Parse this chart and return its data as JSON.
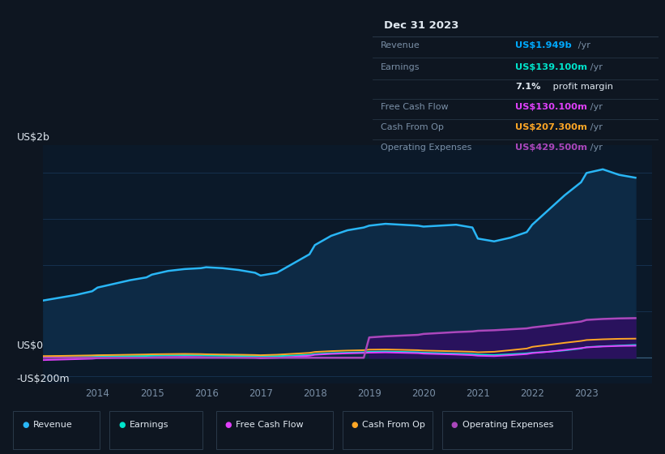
{
  "background_color": "#0e1621",
  "plot_bg_color": "#0b1929",
  "ylabel_top": "US$2b",
  "ylabel_zero": "US$0",
  "ylabel_neg": "-US$200m",
  "title_box": {
    "date": "Dec 31 2023",
    "rows": [
      {
        "label": "Revenue",
        "value": "US$1.949b",
        "value_color": "#00aaff",
        "suffix": " /yr"
      },
      {
        "label": "Earnings",
        "value": "US$139.100m",
        "value_color": "#00e5cc",
        "suffix": " /yr"
      },
      {
        "label": "",
        "value": "7.1%",
        "value_color": "#ffffff",
        "suffix": " profit margin"
      },
      {
        "label": "Free Cash Flow",
        "value": "US$130.100m",
        "value_color": "#e040fb",
        "suffix": " /yr"
      },
      {
        "label": "Cash From Op",
        "value": "US$207.300m",
        "value_color": "#ffa726",
        "suffix": " /yr"
      },
      {
        "label": "Operating Expenses",
        "value": "US$429.500m",
        "value_color": "#ab47bc",
        "suffix": " /yr"
      }
    ]
  },
  "x_years": [
    2013.0,
    2013.3,
    2013.6,
    2013.9,
    2014.0,
    2014.3,
    2014.6,
    2014.9,
    2015.0,
    2015.3,
    2015.6,
    2015.9,
    2016.0,
    2016.3,
    2016.6,
    2016.9,
    2017.0,
    2017.3,
    2017.6,
    2017.9,
    2018.0,
    2018.3,
    2018.6,
    2018.9,
    2019.0,
    2019.3,
    2019.6,
    2019.9,
    2020.0,
    2020.3,
    2020.6,
    2020.9,
    2021.0,
    2021.3,
    2021.6,
    2021.9,
    2022.0,
    2022.3,
    2022.6,
    2022.9,
    2023.0,
    2023.3,
    2023.6,
    2023.9
  ],
  "revenue": [
    620,
    650,
    680,
    720,
    760,
    800,
    840,
    870,
    900,
    940,
    960,
    970,
    980,
    970,
    950,
    920,
    890,
    920,
    1020,
    1120,
    1220,
    1320,
    1380,
    1410,
    1430,
    1450,
    1440,
    1430,
    1420,
    1430,
    1440,
    1410,
    1290,
    1260,
    1300,
    1360,
    1440,
    1600,
    1760,
    1900,
    2000,
    2040,
    1980,
    1949
  ],
  "earnings": [
    5,
    7,
    8,
    10,
    12,
    15,
    18,
    20,
    22,
    25,
    28,
    26,
    24,
    22,
    20,
    18,
    15,
    18,
    24,
    32,
    40,
    50,
    55,
    60,
    65,
    68,
    64,
    60,
    55,
    50,
    45,
    40,
    35,
    30,
    38,
    48,
    55,
    65,
    80,
    100,
    115,
    125,
    132,
    139
  ],
  "free_cash_flow": [
    -25,
    -20,
    -15,
    -10,
    -5,
    -2,
    0,
    2,
    5,
    8,
    10,
    8,
    5,
    3,
    2,
    0,
    -5,
    0,
    10,
    22,
    32,
    42,
    48,
    52,
    55,
    58,
    54,
    50,
    45,
    40,
    35,
    28,
    22,
    18,
    28,
    40,
    50,
    65,
    85,
    105,
    112,
    122,
    128,
    130
  ],
  "cash_from_op": [
    18,
    20,
    23,
    26,
    28,
    30,
    33,
    36,
    38,
    40,
    42,
    40,
    38,
    35,
    33,
    30,
    28,
    33,
    43,
    53,
    63,
    72,
    78,
    82,
    88,
    90,
    86,
    82,
    78,
    74,
    70,
    65,
    60,
    65,
    82,
    100,
    118,
    140,
    162,
    182,
    192,
    200,
    205,
    207
  ],
  "operating_expenses": [
    0,
    0,
    0,
    0,
    0,
    0,
    0,
    0,
    0,
    0,
    0,
    0,
    0,
    0,
    0,
    0,
    0,
    0,
    0,
    0,
    0,
    0,
    0,
    0,
    220,
    232,
    240,
    248,
    258,
    268,
    278,
    285,
    292,
    298,
    308,
    318,
    328,
    348,
    370,
    392,
    410,
    420,
    426,
    429
  ],
  "revenue_color": "#29b6f6",
  "revenue_fill": "#0d2a45",
  "earnings_color": "#00e5cc",
  "fcf_color": "#e040fb",
  "cashop_color": "#ffa726",
  "opex_color": "#ab47bc",
  "opex_fill": "#2d1060",
  "grid_color": "#1a3a5c",
  "text_color": "#7a8fa6",
  "white_color": "#e0e8f0",
  "box_bg": "#060c14",
  "box_border": "#2a3a4a",
  "ylim": [
    -280,
    2300
  ],
  "xlim": [
    2013.0,
    2024.2
  ],
  "xticks": [
    2014,
    2015,
    2016,
    2017,
    2018,
    2019,
    2020,
    2021,
    2022,
    2023
  ],
  "legend_items": [
    {
      "label": "Revenue",
      "color": "#29b6f6"
    },
    {
      "label": "Earnings",
      "color": "#00e5cc"
    },
    {
      "label": "Free Cash Flow",
      "color": "#e040fb"
    },
    {
      "label": "Cash From Op",
      "color": "#ffa726"
    },
    {
      "label": "Operating Expenses",
      "color": "#ab47bc"
    }
  ]
}
